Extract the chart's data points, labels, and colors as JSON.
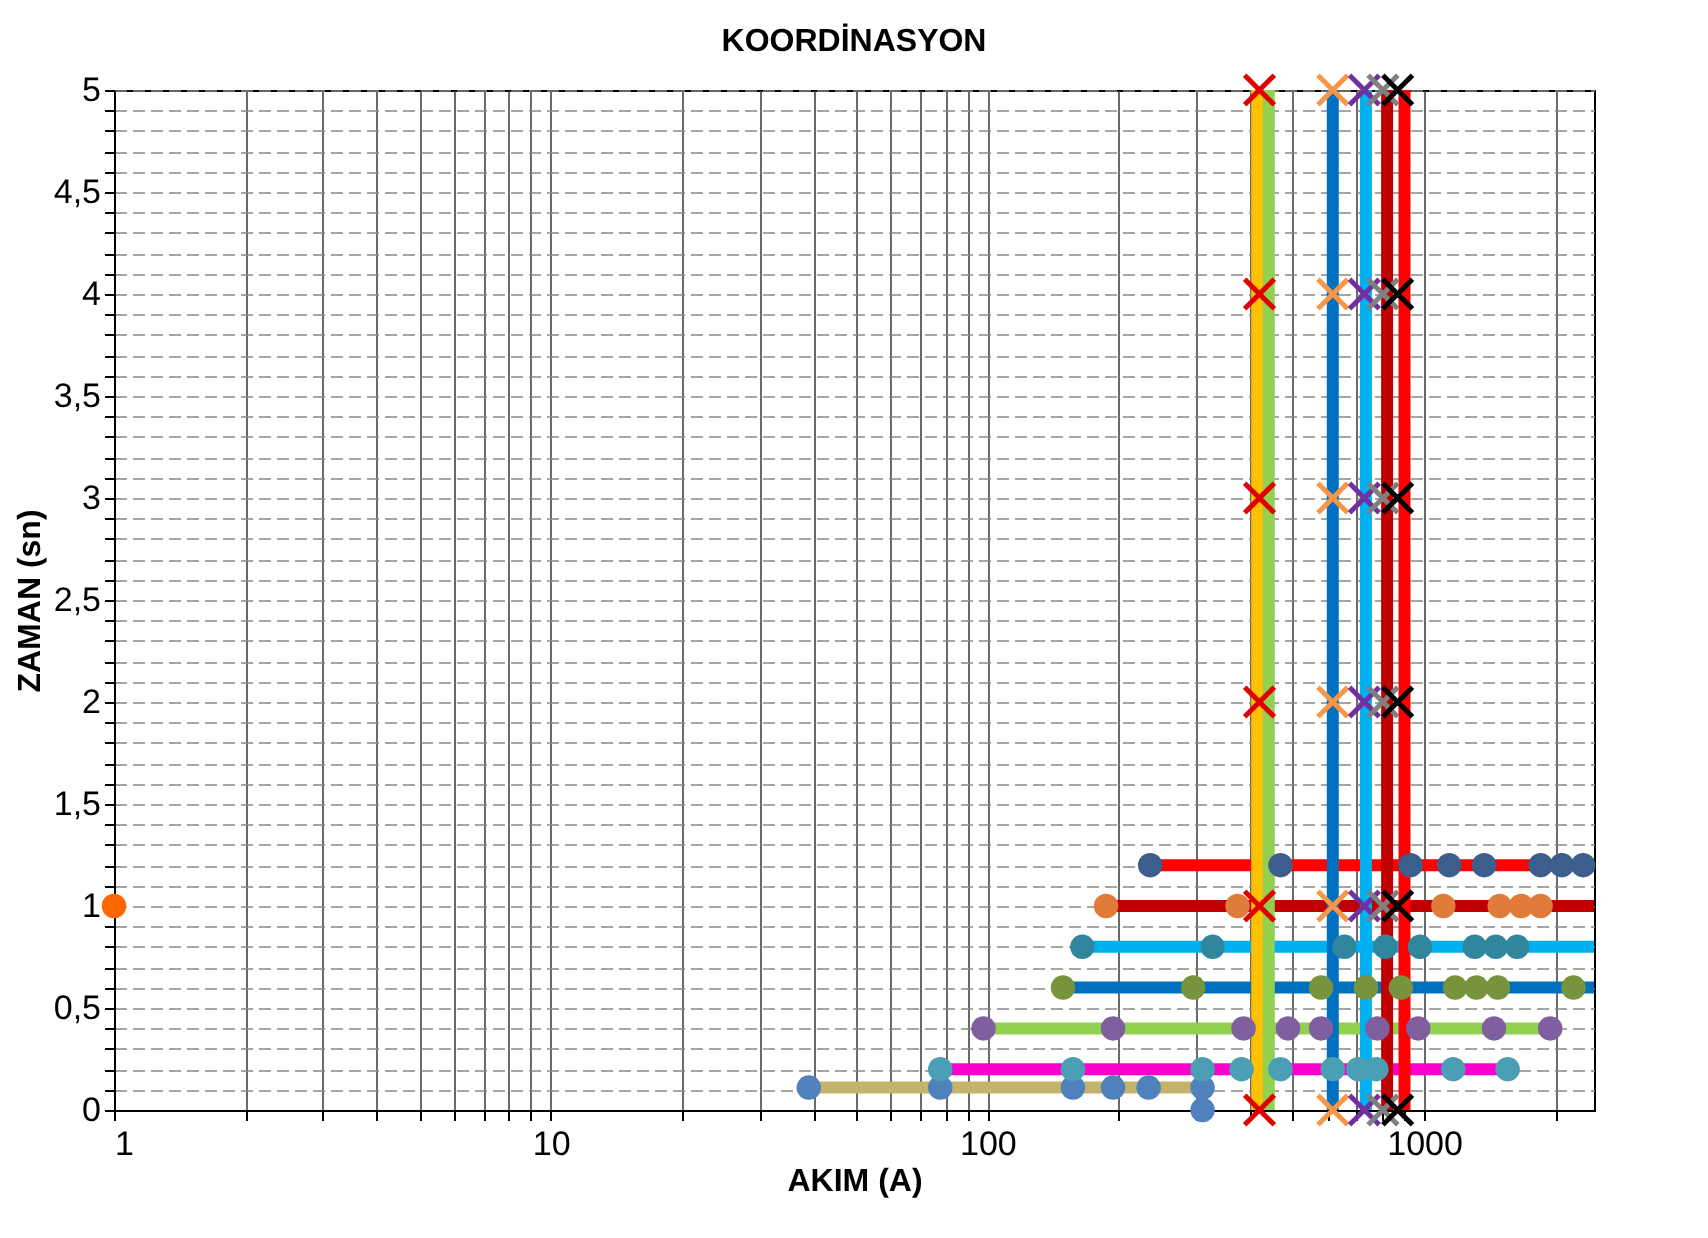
{
  "chart_data": {
    "type": "line",
    "title": "KOORDİNASYON",
    "xlabel": "AKIM (A)",
    "ylabel": "ZAMAN (sn)",
    "log": "x",
    "grid": true,
    "xlim": [
      1,
      2450
    ],
    "ylim": [
      0,
      5
    ],
    "xticks": [
      1,
      {
        "value": 2,
        "label": null
      },
      {
        "value": 3,
        "label": null
      },
      {
        "value": 4,
        "label": null
      },
      {
        "value": 5,
        "label": null
      },
      {
        "value": 6,
        "label": null
      },
      {
        "value": 7,
        "label": null
      },
      {
        "value": 8,
        "label": null
      },
      {
        "value": 9,
        "label": null
      },
      10,
      {
        "value": 20,
        "label": null
      },
      {
        "value": 30,
        "label": null
      },
      {
        "value": 40,
        "label": null
      },
      {
        "value": 50,
        "label": null
      },
      {
        "value": 60,
        "label": null
      },
      {
        "value": 70,
        "label": null
      },
      {
        "value": 80,
        "label": null
      },
      {
        "value": 90,
        "label": null
      },
      100,
      {
        "value": 200,
        "label": null
      },
      {
        "value": 300,
        "label": null
      },
      {
        "value": 400,
        "label": null
      },
      {
        "value": 500,
        "label": null
      },
      {
        "value": 600,
        "label": null
      },
      {
        "value": 700,
        "label": null
      },
      {
        "value": 800,
        "label": null
      },
      {
        "value": 900,
        "label": null
      },
      1000,
      {
        "value": 2000,
        "label": null
      }
    ],
    "yticks": [
      0,
      {
        "value": 0.1,
        "label": null
      },
      {
        "value": 0.2,
        "label": null
      },
      {
        "value": 0.3,
        "label": null
      },
      {
        "value": 0.4,
        "label": null
      },
      {
        "value": 0.5,
        "label": "0,5"
      },
      {
        "value": 0.6,
        "label": null
      },
      {
        "value": 0.7,
        "label": null
      },
      {
        "value": 0.8,
        "label": null
      },
      {
        "value": 0.9,
        "label": null
      },
      1,
      {
        "value": 1.1,
        "label": null
      },
      {
        "value": 1.2,
        "label": null
      },
      {
        "value": 1.3,
        "label": null
      },
      {
        "value": 1.4,
        "label": null
      },
      {
        "value": 1.5,
        "label": "1,5"
      },
      {
        "value": 1.6,
        "label": null
      },
      {
        "value": 1.7,
        "label": null
      },
      {
        "value": 1.8,
        "label": null
      },
      {
        "value": 1.9,
        "label": null
      },
      2,
      {
        "value": 2.1,
        "label": null
      },
      {
        "value": 2.2,
        "label": null
      },
      {
        "value": 2.3,
        "label": null
      },
      {
        "value": 2.4,
        "label": null
      },
      {
        "value": 2.5,
        "label": "2,5"
      },
      {
        "value": 2.6,
        "label": null
      },
      {
        "value": 2.7,
        "label": null
      },
      {
        "value": 2.8,
        "label": null
      },
      {
        "value": 2.9,
        "label": null
      },
      3,
      {
        "value": 3.1,
        "label": null
      },
      {
        "value": 3.2,
        "label": null
      },
      {
        "value": 3.3,
        "label": null
      },
      {
        "value": 3.4,
        "label": null
      },
      {
        "value": 3.5,
        "label": "3,5"
      },
      {
        "value": 3.6,
        "label": null
      },
      {
        "value": 3.7,
        "label": null
      },
      {
        "value": 3.8,
        "label": null
      },
      {
        "value": 3.9,
        "label": null
      },
      4,
      {
        "value": 4.1,
        "label": null
      },
      {
        "value": 4.2,
        "label": null
      },
      {
        "value": 4.3,
        "label": null
      },
      {
        "value": 4.4,
        "label": null
      },
      {
        "value": 4.5,
        "label": "4,5"
      },
      {
        "value": 4.6,
        "label": null
      },
      {
        "value": 4.7,
        "label": null
      },
      {
        "value": 4.8,
        "label": null
      },
      {
        "value": 4.9,
        "label": null
      },
      5
    ],
    "series": [
      {
        "color": "#c4b46a",
        "x": [
          39,
          311
        ],
        "values": [
          0.11,
          0.11
        ],
        "marker": "none"
      },
      {
        "color": "#ff00cc",
        "x": [
          78,
          1554
        ],
        "values": [
          0.2,
          0.2
        ],
        "marker": "none"
      },
      {
        "color": "#92d050",
        "x": [
          98,
          1945
        ],
        "values": [
          0.4,
          0.4
        ],
        "marker": "none"
      },
      {
        "color": "#0070c0",
        "x": [
          149,
          2450
        ],
        "values": [
          0.6,
          0.6
        ],
        "marker": "none"
      },
      {
        "color": "#00b0f0",
        "x": [
          165,
          2450
        ],
        "values": [
          0.8,
          0.8
        ],
        "marker": "none"
      },
      {
        "color": "#c00000",
        "x": [
          187,
          2450
        ],
        "values": [
          1,
          1
        ],
        "marker": "none"
      },
      {
        "color": "#ff0000",
        "x": [
          236,
          2450
        ],
        "values": [
          1.2,
          1.2
        ],
        "marker": "none"
      },
      {
        "color": "#ffc000",
        "x": [
          415,
          415
        ],
        "values": [
          0,
          5
        ],
        "marker": "none"
      },
      {
        "color": "#92d050",
        "x": [
          441,
          441
        ],
        "values": [
          0,
          5
        ],
        "marker": "none"
      },
      {
        "color": "#0070c0",
        "x": [
          618,
          618
        ],
        "values": [
          0,
          5
        ],
        "marker": "none"
      },
      {
        "color": "#00b0f0",
        "x": [
          736,
          736
        ],
        "values": [
          0,
          5
        ],
        "marker": "none"
      },
      {
        "color": "#c00000",
        "x": [
          823,
          823
        ],
        "values": [
          0,
          5
        ],
        "marker": "none"
      },
      {
        "color": "#ff0000",
        "x": [
          902,
          902
        ],
        "values": [
          0,
          5
        ],
        "marker": "none"
      },
      {
        "type": "scatter",
        "color": "#4f81bd",
        "x": [
          39,
          78,
          157,
          194,
          234,
          311,
          311
        ],
        "values": [
          0.11,
          0.11,
          0.11,
          0.11,
          0.11,
          0.11,
          0
        ],
        "marker": "circle"
      },
      {
        "type": "scatter",
        "color": "#4a9fb5",
        "x": [
          78,
          157,
          311,
          382,
          469,
          618,
          707,
          777,
          1166,
          1554
        ],
        "values": [
          0.2,
          0.2,
          0.2,
          0.2,
          0.2,
          0.2,
          0.2,
          0.2,
          0.2,
          0.2
        ],
        "marker": "circle"
      },
      {
        "type": "scatter",
        "color": "#7f5f9f",
        "x": [
          98,
          194,
          386,
          488,
          581,
          782,
          970,
          1446,
          1945
        ],
        "values": [
          0.4,
          0.4,
          0.4,
          0.4,
          0.4,
          0.4,
          0.4,
          0.4,
          0.4
        ],
        "marker": "circle"
      },
      {
        "type": "scatter",
        "color": "#77933c",
        "x": [
          149,
          296,
          581,
          736,
          885,
          1178,
          1318,
          1476,
          2199
        ],
        "values": [
          0.6,
          0.6,
          0.6,
          0.6,
          0.6,
          0.6,
          0.6,
          0.6,
          0.6
        ],
        "marker": "circle"
      },
      {
        "type": "scatter",
        "color": "#31859c",
        "x": [
          165,
          328,
          657,
          815,
          979,
          1306,
          1460,
          1634
        ],
        "values": [
          0.8,
          0.8,
          0.8,
          0.8,
          0.8,
          0.8,
          0.8,
          0.8
        ],
        "marker": "circle"
      },
      {
        "type": "scatter",
        "color": "#e07b39",
        "x": [
          187,
          374,
          1107,
          1490,
          1668,
          1849
        ],
        "values": [
          1,
          1,
          1,
          1,
          1,
          1
        ],
        "marker": "circle"
      },
      {
        "type": "scatter",
        "color": "#3b5e8c",
        "x": [
          236,
          469,
          931,
          1142,
          1373,
          1849,
          2068,
          2314
        ],
        "values": [
          1.2,
          1.2,
          1.2,
          1.2,
          1.2,
          1.2,
          1.2,
          1.2
        ],
        "marker": "circle"
      },
      {
        "type": "scatter",
        "color": "#ff6600",
        "x": [
          1
        ],
        "values": [
          1
        ],
        "marker": "circle"
      },
      {
        "type": "scatter",
        "color": "#e00000",
        "x": [
          420,
          420,
          420,
          420,
          420,
          420
        ],
        "values": [
          0,
          1,
          2,
          3,
          4,
          5
        ],
        "marker": "cross"
      },
      {
        "type": "scatter",
        "color": "#f79646",
        "x": [
          618,
          618,
          618,
          618,
          618,
          618
        ],
        "values": [
          0,
          1,
          2,
          3,
          4,
          5
        ],
        "marker": "cross"
      },
      {
        "type": "scatter",
        "color": "#7030a0",
        "x": [
          730,
          730,
          730,
          730,
          730,
          730
        ],
        "values": [
          0,
          1,
          2,
          3,
          4,
          5
        ],
        "marker": "cross"
      },
      {
        "type": "scatter",
        "color": "#808080",
        "x": [
          805,
          805,
          805,
          805,
          805,
          805
        ],
        "values": [
          0,
          1,
          2,
          3,
          4,
          5
        ],
        "marker": "cross"
      },
      {
        "type": "scatter",
        "color": "#000000",
        "x": [
          870,
          870,
          870,
          870,
          870,
          870
        ],
        "values": [
          0,
          1,
          2,
          3,
          4,
          5
        ],
        "marker": "cross"
      }
    ]
  }
}
